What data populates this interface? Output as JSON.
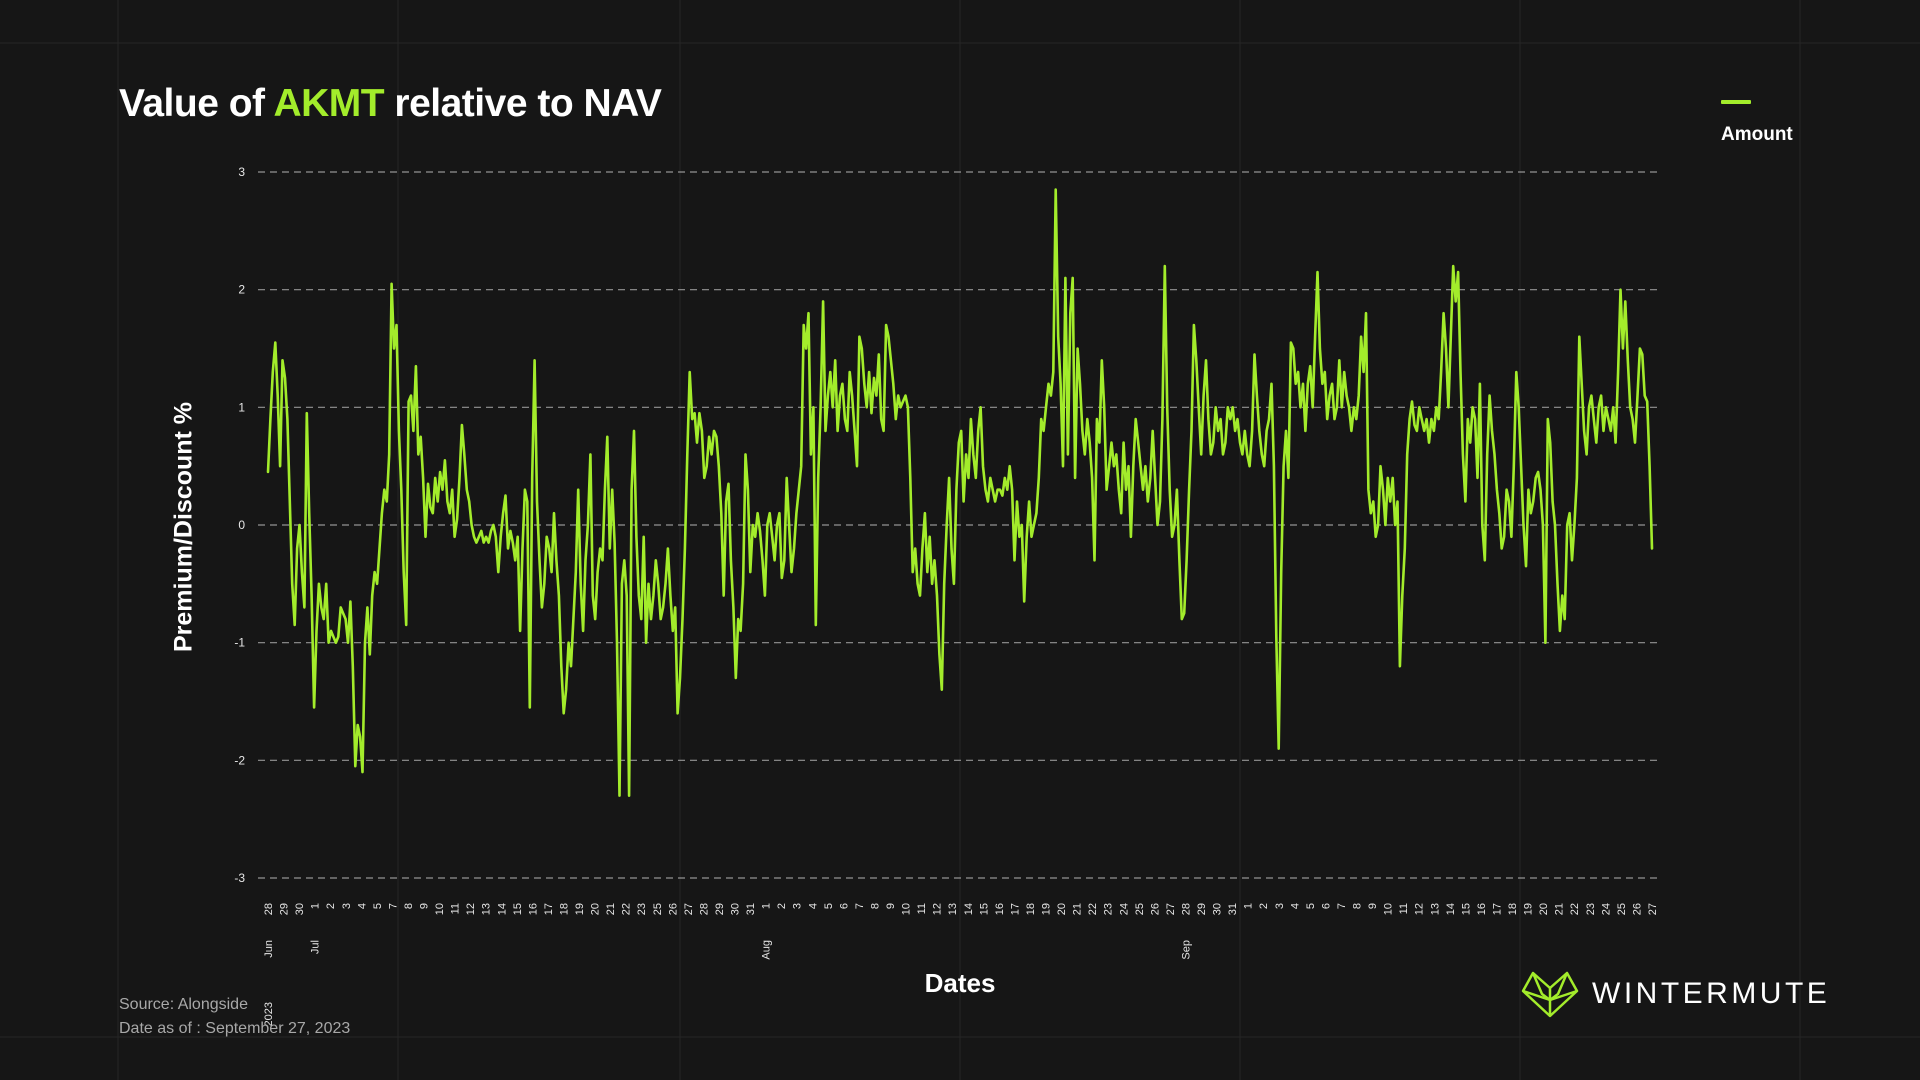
{
  "title": {
    "prefix": "Value of ",
    "highlight": "AKMT",
    "suffix": " relative to NAV"
  },
  "legend": {
    "label": "Amount"
  },
  "footer": {
    "source": "Source: Alongside",
    "date": "Date as of : September 27, 2023"
  },
  "brand": {
    "name": "WINTERMUTE"
  },
  "colors": {
    "accent": "#a3ec2b",
    "background": "#161616",
    "text": "#ffffff",
    "muted": "#a8a8a8"
  },
  "chart_data": {
    "type": "line",
    "title": "Value of AKMT relative to NAV",
    "xlabel": "Dates",
    "ylabel": "Premium/Discount %",
    "ylim": [
      -3,
      3
    ],
    "yticks": [
      "-3",
      "-2",
      "-1",
      "0",
      "1",
      "2",
      "3"
    ],
    "grid": "horizontal dashed",
    "legend_position": "top-right",
    "x_ticks": [
      "28",
      "29",
      "30",
      "1",
      "2",
      "3",
      "4",
      "5",
      "7",
      "8",
      "9",
      "10",
      "11",
      "12",
      "13",
      "14",
      "15",
      "16",
      "17",
      "18",
      "19",
      "20",
      "21",
      "22",
      "23",
      "25",
      "26",
      "27",
      "28",
      "29",
      "30",
      "31",
      "1",
      "2",
      "3",
      "4",
      "5",
      "6",
      "7",
      "8",
      "9",
      "10",
      "11",
      "12",
      "13",
      "14",
      "15",
      "16",
      "17",
      "18",
      "19",
      "20",
      "21",
      "22",
      "23",
      "24",
      "25",
      "26",
      "27",
      "28",
      "29",
      "30",
      "31",
      "1",
      "2",
      "3",
      "4",
      "5",
      "6",
      "7",
      "8",
      "9",
      "10",
      "11",
      "12",
      "13",
      "14",
      "15",
      "16",
      "17",
      "18",
      "19",
      "20",
      "21",
      "22",
      "23",
      "24",
      "25",
      "26",
      "27"
    ],
    "month_labels": [
      {
        "label": "Jun",
        "at_tick": 0
      },
      {
        "label": "Jul",
        "at_tick": 3
      },
      {
        "label": "Aug",
        "at_tick": 32
      },
      {
        "label": "Sep",
        "at_tick": 59
      }
    ],
    "year_labels": [
      {
        "label": "2023",
        "at_tick": 0
      }
    ],
    "series": [
      {
        "name": "Amount",
        "color": "#a3ec2b",
        "values": [
          0.45,
          0.9,
          1.3,
          1.55,
          1.1,
          0.5,
          1.4,
          1.25,
          0.9,
          0.2,
          -0.5,
          -0.85,
          -0.2,
          0.0,
          -0.4,
          -0.7,
          0.95,
          0.1,
          -0.6,
          -1.55,
          -0.9,
          -0.5,
          -0.7,
          -0.8,
          -0.5,
          -1.0,
          -0.9,
          -0.95,
          -1.0,
          -0.95,
          -0.7,
          -0.75,
          -0.8,
          -1.0,
          -0.65,
          -1.2,
          -2.05,
          -1.7,
          -1.8,
          -2.1,
          -1.0,
          -0.7,
          -1.1,
          -0.6,
          -0.4,
          -0.5,
          -0.2,
          0.1,
          0.3,
          0.2,
          0.6,
          2.05,
          1.5,
          1.7,
          0.8,
          0.3,
          -0.4,
          -0.85,
          1.05,
          1.1,
          0.8,
          1.35,
          0.6,
          0.75,
          0.4,
          -0.1,
          0.35,
          0.15,
          0.1,
          0.4,
          0.2,
          0.45,
          0.3,
          0.55,
          0.2,
          0.1,
          0.3,
          -0.1,
          0.05,
          0.4,
          0.85,
          0.6,
          0.3,
          0.2,
          0.0,
          -0.1,
          -0.15,
          -0.1,
          -0.05,
          -0.15,
          -0.1,
          -0.15,
          -0.05,
          0.0,
          -0.1,
          -0.4,
          -0.1,
          0.1,
          0.25,
          -0.2,
          -0.05,
          -0.15,
          -0.3,
          -0.1,
          -0.9,
          -0.2,
          0.3,
          0.2,
          -1.55,
          0.4,
          1.4,
          0.2,
          -0.3,
          -0.7,
          -0.5,
          -0.1,
          -0.2,
          -0.4,
          0.1,
          -0.3,
          -0.6,
          -1.2,
          -1.6,
          -1.4,
          -1.0,
          -1.2,
          -0.8,
          -0.4,
          0.3,
          -0.5,
          -0.9,
          -0.3,
          0.0,
          0.6,
          -0.6,
          -0.8,
          -0.4,
          -0.2,
          -0.3,
          0.3,
          0.75,
          -0.2,
          0.3,
          -0.15,
          -1.0,
          -2.3,
          -0.5,
          -0.3,
          -0.6,
          -2.3,
          0.3,
          0.8,
          -0.1,
          -0.6,
          -0.8,
          -0.1,
          -1.0,
          -0.5,
          -0.8,
          -0.6,
          -0.3,
          -0.5,
          -0.8,
          -0.7,
          -0.5,
          -0.2,
          -0.6,
          -0.9,
          -0.7,
          -1.6,
          -1.3,
          -0.8,
          -0.2,
          0.6,
          1.3,
          0.9,
          0.95,
          0.7,
          0.95,
          0.8,
          0.4,
          0.5,
          0.75,
          0.6,
          0.8,
          0.75,
          0.5,
          0.1,
          -0.6,
          0.2,
          0.35,
          -0.3,
          -0.7,
          -1.3,
          -0.8,
          -0.9,
          -0.5,
          0.6,
          0.3,
          -0.4,
          0.0,
          -0.1,
          0.1,
          -0.05,
          -0.3,
          -0.6,
          0.0,
          0.1,
          -0.1,
          -0.3,
          0.0,
          0.1,
          -0.45,
          -0.3,
          0.4,
          0.0,
          -0.4,
          -0.2,
          0.1,
          0.3,
          0.5,
          1.7,
          1.5,
          1.8,
          0.6,
          1.0,
          -0.85,
          0.4,
          1.0,
          1.9,
          0.8,
          1.1,
          1.3,
          1.0,
          1.4,
          0.8,
          1.1,
          1.2,
          0.9,
          0.8,
          1.3,
          1.1,
          0.8,
          0.5,
          1.6,
          1.5,
          1.2,
          1.0,
          1.3,
          0.95,
          1.25,
          1.1,
          1.45,
          0.9,
          0.8,
          1.7,
          1.6,
          1.4,
          1.2,
          0.9,
          1.1,
          1.0,
          1.05,
          1.1,
          1.0,
          0.4,
          -0.4,
          -0.2,
          -0.5,
          -0.6,
          -0.2,
          0.1,
          -0.4,
          -0.1,
          -0.5,
          -0.3,
          -0.6,
          -1.1,
          -1.4,
          -0.5,
          0.0,
          0.4,
          -0.2,
          -0.5,
          0.3,
          0.7,
          0.8,
          0.2,
          0.6,
          0.4,
          0.9,
          0.6,
          0.4,
          0.8,
          1.0,
          0.5,
          0.3,
          0.2,
          0.4,
          0.3,
          0.2,
          0.3,
          0.3,
          0.25,
          0.4,
          0.3,
          0.5,
          0.3,
          -0.3,
          0.2,
          -0.1,
          0.0,
          -0.65,
          -0.1,
          0.2,
          -0.1,
          0.0,
          0.1,
          0.4,
          0.9,
          0.8,
          1.0,
          1.2,
          1.1,
          1.3,
          2.85,
          1.6,
          1.2,
          0.5,
          2.1,
          0.6,
          1.8,
          2.1,
          0.4,
          1.5,
          1.2,
          0.8,
          0.6,
          0.9,
          0.7,
          0.4,
          -0.3,
          0.9,
          0.7,
          1.4,
          1.0,
          0.3,
          0.5,
          0.7,
          0.5,
          0.6,
          0.3,
          0.1,
          0.7,
          0.3,
          0.5,
          -0.1,
          0.5,
          0.9,
          0.7,
          0.5,
          0.3,
          0.5,
          0.2,
          0.4,
          0.8,
          0.4,
          0.0,
          0.2,
          0.9,
          2.2,
          1.0,
          0.3,
          -0.1,
          0.0,
          0.3,
          -0.3,
          -0.8,
          -0.75,
          -0.3,
          0.3,
          0.8,
          1.7,
          1.4,
          1.0,
          0.6,
          1.1,
          1.4,
          0.9,
          0.6,
          0.7,
          1.0,
          0.8,
          0.9,
          0.6,
          0.7,
          1.0,
          0.9,
          1.0,
          0.8,
          0.9,
          0.7,
          0.6,
          0.8,
          0.6,
          0.5,
          0.8,
          1.45,
          1.1,
          0.8,
          0.6,
          0.5,
          0.8,
          0.9,
          1.2,
          0.5,
          -0.95,
          -1.9,
          -0.4,
          0.5,
          0.8,
          0.4,
          1.55,
          1.5,
          1.2,
          1.3,
          1.0,
          1.2,
          0.8,
          1.2,
          1.35,
          1.0,
          1.6,
          2.15,
          1.5,
          1.2,
          1.3,
          0.9,
          1.1,
          1.2,
          0.9,
          1.0,
          1.4,
          1.0,
          1.3,
          1.1,
          1.0,
          0.8,
          1.0,
          0.9,
          1.1,
          1.6,
          1.3,
          1.8,
          0.3,
          0.1,
          0.2,
          -0.1,
          0.0,
          0.5,
          0.3,
          0.0,
          0.4,
          0.2,
          0.4,
          0.0,
          0.2,
          -1.2,
          -0.6,
          -0.2,
          0.6,
          0.9,
          1.05,
          0.85,
          0.8,
          1.0,
          0.9,
          0.8,
          0.9,
          0.7,
          0.9,
          0.8,
          1.0,
          0.9,
          1.3,
          1.8,
          1.5,
          1.0,
          1.6,
          2.2,
          1.9,
          2.15,
          1.3,
          0.6,
          0.2,
          0.9,
          0.7,
          1.0,
          0.9,
          0.4,
          1.2,
          0.0,
          -0.3,
          0.6,
          1.1,
          0.8,
          0.6,
          0.3,
          0.1,
          -0.2,
          -0.1,
          0.3,
          0.2,
          -0.1,
          0.5,
          1.3,
          1.0,
          0.5,
          0.0,
          -0.35,
          0.3,
          0.1,
          0.2,
          0.4,
          0.45,
          0.3,
          0.0,
          -1.0,
          0.9,
          0.7,
          0.2,
          0.0,
          -0.5,
          -0.9,
          -0.6,
          -0.8,
          0.0,
          0.1,
          -0.3,
          0.0,
          0.4,
          1.6,
          1.2,
          0.8,
          0.6,
          1.0,
          1.1,
          0.9,
          0.7,
          1.0,
          1.1,
          0.8,
          1.0,
          0.9,
          0.8,
          1.0,
          0.7,
          1.3,
          2.0,
          1.5,
          1.9,
          1.4,
          1.0,
          0.9,
          0.7,
          1.1,
          1.5,
          1.45,
          1.1,
          1.05,
          0.5,
          -0.2
        ]
      }
    ]
  }
}
